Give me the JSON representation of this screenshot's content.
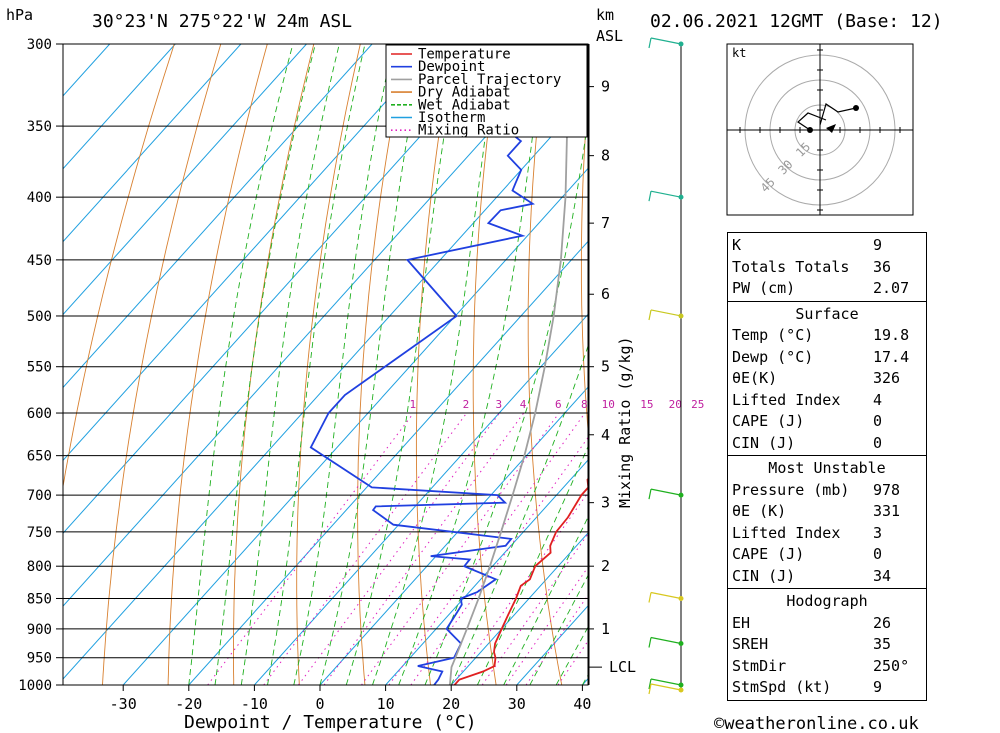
{
  "header": {
    "pressure_unit": "hPa",
    "location": "30°23'N  275°22'W  24m  ASL",
    "km_unit": "km",
    "km_asl": "ASL",
    "datetime": "02.06.2021  12GMT  (Base: 12)"
  },
  "footer": {
    "credit": "©weatheronline.co.uk"
  },
  "chart_data": {
    "type": "line",
    "title": "30°23'N  275°22'W  24m  ASL",
    "xlabel": "Dewpoint / Temperature (°C)",
    "ylabel": "hPa",
    "right_axis_label": "Mixing Ratio (g/kg)",
    "xlim": [
      -40,
      40
    ],
    "ylim": [
      1000,
      300
    ],
    "x_ticks": [
      "-30",
      "-20",
      "-10",
      "0",
      "10",
      "20",
      "30",
      "40"
    ],
    "pressure_levels": [
      300,
      350,
      400,
      450,
      500,
      550,
      600,
      650,
      700,
      750,
      800,
      850,
      900,
      950,
      1000
    ],
    "km_levels": [
      {
        "label": "1",
        "p": 900
      },
      {
        "label": "2",
        "p": 800
      },
      {
        "label": "3",
        "p": 710
      },
      {
        "label": "4",
        "p": 625
      },
      {
        "label": "5",
        "p": 550
      },
      {
        "label": "6",
        "p": 480
      },
      {
        "label": "7",
        "p": 420
      },
      {
        "label": "8",
        "p": 370
      },
      {
        "label": "9",
        "p": 325
      }
    ],
    "lcl": {
      "label": "LCL",
      "p": 967
    },
    "mixing_ratio_labels": [
      "1",
      "2",
      "3",
      "4",
      "6",
      "8",
      "10",
      "15",
      "20",
      "25"
    ],
    "legend_placement": "top-right",
    "legend": [
      {
        "name": "Temperature",
        "color": "#e02020"
      },
      {
        "name": "Dewpoint",
        "color": "#2040e0"
      },
      {
        "name": "Parcel Trajectory",
        "color": "#a0a0a0"
      },
      {
        "name": "Dry Adiabat",
        "color": "#d88030"
      },
      {
        "name": "Wet Adiabat",
        "color": "#20b020"
      },
      {
        "name": "Isotherm",
        "color": "#20a0e0"
      },
      {
        "name": "Mixing Ratio",
        "color": "#e020c0"
      }
    ],
    "series": [
      {
        "name": "Temperature",
        "color": "#e02020",
        "points": [
          [
            1000,
            20.5
          ],
          [
            990,
            20.5
          ],
          [
            975,
            23.0
          ],
          [
            965,
            24.0
          ],
          [
            950,
            23.0
          ],
          [
            940,
            22.0
          ],
          [
            925,
            21.0
          ],
          [
            900,
            20.0
          ],
          [
            875,
            19.0
          ],
          [
            850,
            18.0
          ],
          [
            830,
            17.0
          ],
          [
            820,
            17.5
          ],
          [
            800,
            16.5
          ],
          [
            780,
            17.0
          ],
          [
            770,
            16.0
          ],
          [
            750,
            15.0
          ],
          [
            730,
            14.8
          ],
          [
            700,
            13.8
          ],
          [
            690,
            13.8
          ],
          [
            680,
            12.6
          ],
          [
            660,
            12.6
          ],
          [
            650,
            12.0
          ],
          [
            600,
            8.6
          ],
          [
            550,
            4.2
          ],
          [
            500,
            -1.0
          ],
          [
            450,
            -6.8
          ],
          [
            430,
            -10.2
          ],
          [
            410,
            -12.6
          ],
          [
            400,
            -14.4
          ],
          [
            390,
            -16.8
          ],
          [
            380,
            -18.2
          ],
          [
            360,
            -21.0
          ],
          [
            350,
            -23.0
          ],
          [
            340,
            -25.0
          ],
          [
            330,
            -27.5
          ],
          [
            320,
            -29.8
          ],
          [
            310,
            -31.2
          ],
          [
            300,
            -33.5
          ]
        ]
      },
      {
        "name": "Dewpoint",
        "color": "#2040e0",
        "points": [
          [
            1000,
            17.4
          ],
          [
            990,
            17.3
          ],
          [
            975,
            16.8
          ],
          [
            965,
            12.3
          ],
          [
            950,
            16.7
          ],
          [
            925,
            15.8
          ],
          [
            900,
            11.6
          ],
          [
            875,
            11.0
          ],
          [
            860,
            10.6
          ],
          [
            850,
            9.6
          ],
          [
            840,
            11.2
          ],
          [
            820,
            12.3
          ],
          [
            800,
            5.7
          ],
          [
            790,
            5.6
          ],
          [
            785,
            -0.8
          ],
          [
            770,
            9.2
          ],
          [
            760,
            9.1
          ],
          [
            740,
            -10.8
          ],
          [
            720,
            -15.9
          ],
          [
            715,
            -16.0
          ],
          [
            710,
            3.2
          ],
          [
            700,
            1.0
          ],
          [
            690,
            -19.2
          ],
          [
            640,
            -34.0
          ],
          [
            600,
            -36.0
          ],
          [
            580,
            -36.0
          ],
          [
            500,
            -29.8
          ],
          [
            450,
            -45.0
          ],
          [
            430,
            -30.8
          ],
          [
            420,
            -37.7
          ],
          [
            410,
            -37.6
          ],
          [
            405,
            -33.6
          ],
          [
            395,
            -38.5
          ],
          [
            390,
            -39.0
          ],
          [
            380,
            -40.0
          ],
          [
            370,
            -44.0
          ],
          [
            360,
            -44.0
          ],
          [
            350,
            -49.0
          ],
          [
            340,
            -45.0
          ],
          [
            330,
            -48.0
          ],
          [
            325,
            -47.5
          ],
          [
            320,
            -47.5
          ],
          [
            310,
            -49.0
          ],
          [
            300,
            -51.0
          ]
        ]
      },
      {
        "name": "Parcel Trajectory",
        "color": "#a0a0a0",
        "points": [
          [
            1000,
            19.8
          ],
          [
            967,
            17.6
          ],
          [
            950,
            16.9
          ],
          [
            900,
            14.7
          ],
          [
            850,
            12.3
          ],
          [
            800,
            9.6
          ],
          [
            750,
            6.6
          ],
          [
            700,
            3.3
          ],
          [
            650,
            -0.3
          ],
          [
            600,
            -4.5
          ],
          [
            550,
            -9.4
          ],
          [
            500,
            -15.0
          ],
          [
            450,
            -21.6
          ],
          [
            400,
            -29.5
          ],
          [
            350,
            -39.0
          ],
          [
            300,
            -50.5
          ]
        ]
      }
    ],
    "wind_barbs": [
      {
        "p": 300,
        "color": "#20b090"
      },
      {
        "p": 400,
        "color": "#20b090"
      },
      {
        "p": 500,
        "color": "#c8c820"
      },
      {
        "p": 700,
        "color": "#20b020"
      },
      {
        "p": 850,
        "color": "#d8c820"
      },
      {
        "p": 925,
        "color": "#20b020"
      },
      {
        "p": 1000,
        "color": "#20b020"
      },
      {
        "p": 1010,
        "color": "#d8c820"
      }
    ],
    "hodograph": {
      "unit": "kt",
      "ring_labels": [
        "15",
        "30",
        "45"
      ]
    }
  },
  "stats": {
    "top": [
      {
        "label": "K",
        "value": "9"
      },
      {
        "label": "Totals Totals",
        "value": "36"
      },
      {
        "label": "PW (cm)",
        "value": "2.07"
      }
    ],
    "surface": {
      "title": "Surface",
      "rows": [
        {
          "label": "Temp (°C)",
          "value": "19.8"
        },
        {
          "label": "Dewp (°C)",
          "value": "17.4"
        },
        {
          "label": "θE(K)",
          "value": "326"
        },
        {
          "label": "Lifted Index",
          "value": "4"
        },
        {
          "label": "CAPE (J)",
          "value": "0"
        },
        {
          "label": "CIN (J)",
          "value": "0"
        }
      ]
    },
    "most_unstable": {
      "title": "Most Unstable",
      "rows": [
        {
          "label": "Pressure (mb)",
          "value": "978"
        },
        {
          "label": "θE (K)",
          "value": "331"
        },
        {
          "label": "Lifted Index",
          "value": "3"
        },
        {
          "label": "CAPE (J)",
          "value": "0"
        },
        {
          "label": "CIN (J)",
          "value": "34"
        }
      ]
    },
    "hodograph": {
      "title": "Hodograph",
      "rows": [
        {
          "label": "EH",
          "value": "26"
        },
        {
          "label": "SREH",
          "value": "35"
        },
        {
          "label": "StmDir",
          "value": "250°"
        },
        {
          "label": "StmSpd (kt)",
          "value": "9"
        }
      ]
    }
  }
}
